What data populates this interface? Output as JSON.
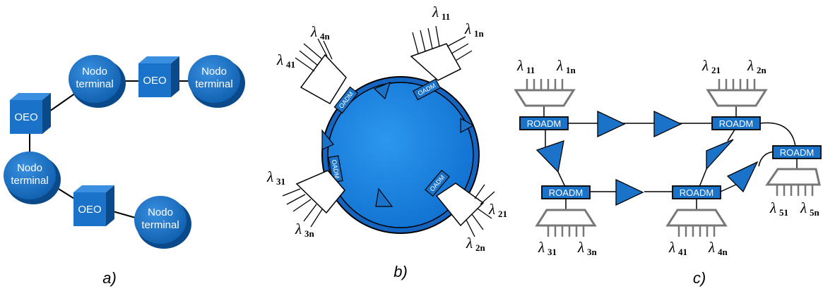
{
  "panel_a": {
    "caption": "a)",
    "terminal_line1": "Nodo",
    "terminal_line2": "terminal",
    "oeo_label": "OEO"
  },
  "panel_b": {
    "caption": "b)",
    "oadm_label": "OADM",
    "lambdas": {
      "l11": {
        "sym": "λ",
        "sub": "11"
      },
      "l1n": {
        "sym": "λ",
        "sub": "1n"
      },
      "l41": {
        "sym": "λ",
        "sub": "41"
      },
      "l4n": {
        "sym": "λ",
        "sub": "4n"
      },
      "l31": {
        "sym": "λ",
        "sub": "31"
      },
      "l3n": {
        "sym": "λ",
        "sub": "3n"
      },
      "l21": {
        "sym": "λ",
        "sub": "21"
      },
      "l2n": {
        "sym": "λ",
        "sub": "2n"
      }
    }
  },
  "panel_c": {
    "caption": "c)",
    "roadm_label": "ROADM",
    "lambdas": {
      "l11": {
        "sym": "λ",
        "sub": "11"
      },
      "l1n": {
        "sym": "λ",
        "sub": "1n"
      },
      "l21": {
        "sym": "λ",
        "sub": "21"
      },
      "l2n": {
        "sym": "λ",
        "sub": "2n"
      },
      "l31": {
        "sym": "λ",
        "sub": "31"
      },
      "l3n": {
        "sym": "λ",
        "sub": "3n"
      },
      "l41": {
        "sym": "λ",
        "sub": "41"
      },
      "l4n": {
        "sym": "λ",
        "sub": "4n"
      },
      "l51": {
        "sym": "λ",
        "sub": "51"
      },
      "l5n": {
        "sym": "λ",
        "sub": "5n"
      }
    }
  },
  "colors": {
    "node_blue": "#1b6fc4",
    "node_dark": "#0d4f93",
    "ring_blue": "#1e88e5",
    "box_blue": "#1a73c9",
    "stroke": "#000000"
  }
}
